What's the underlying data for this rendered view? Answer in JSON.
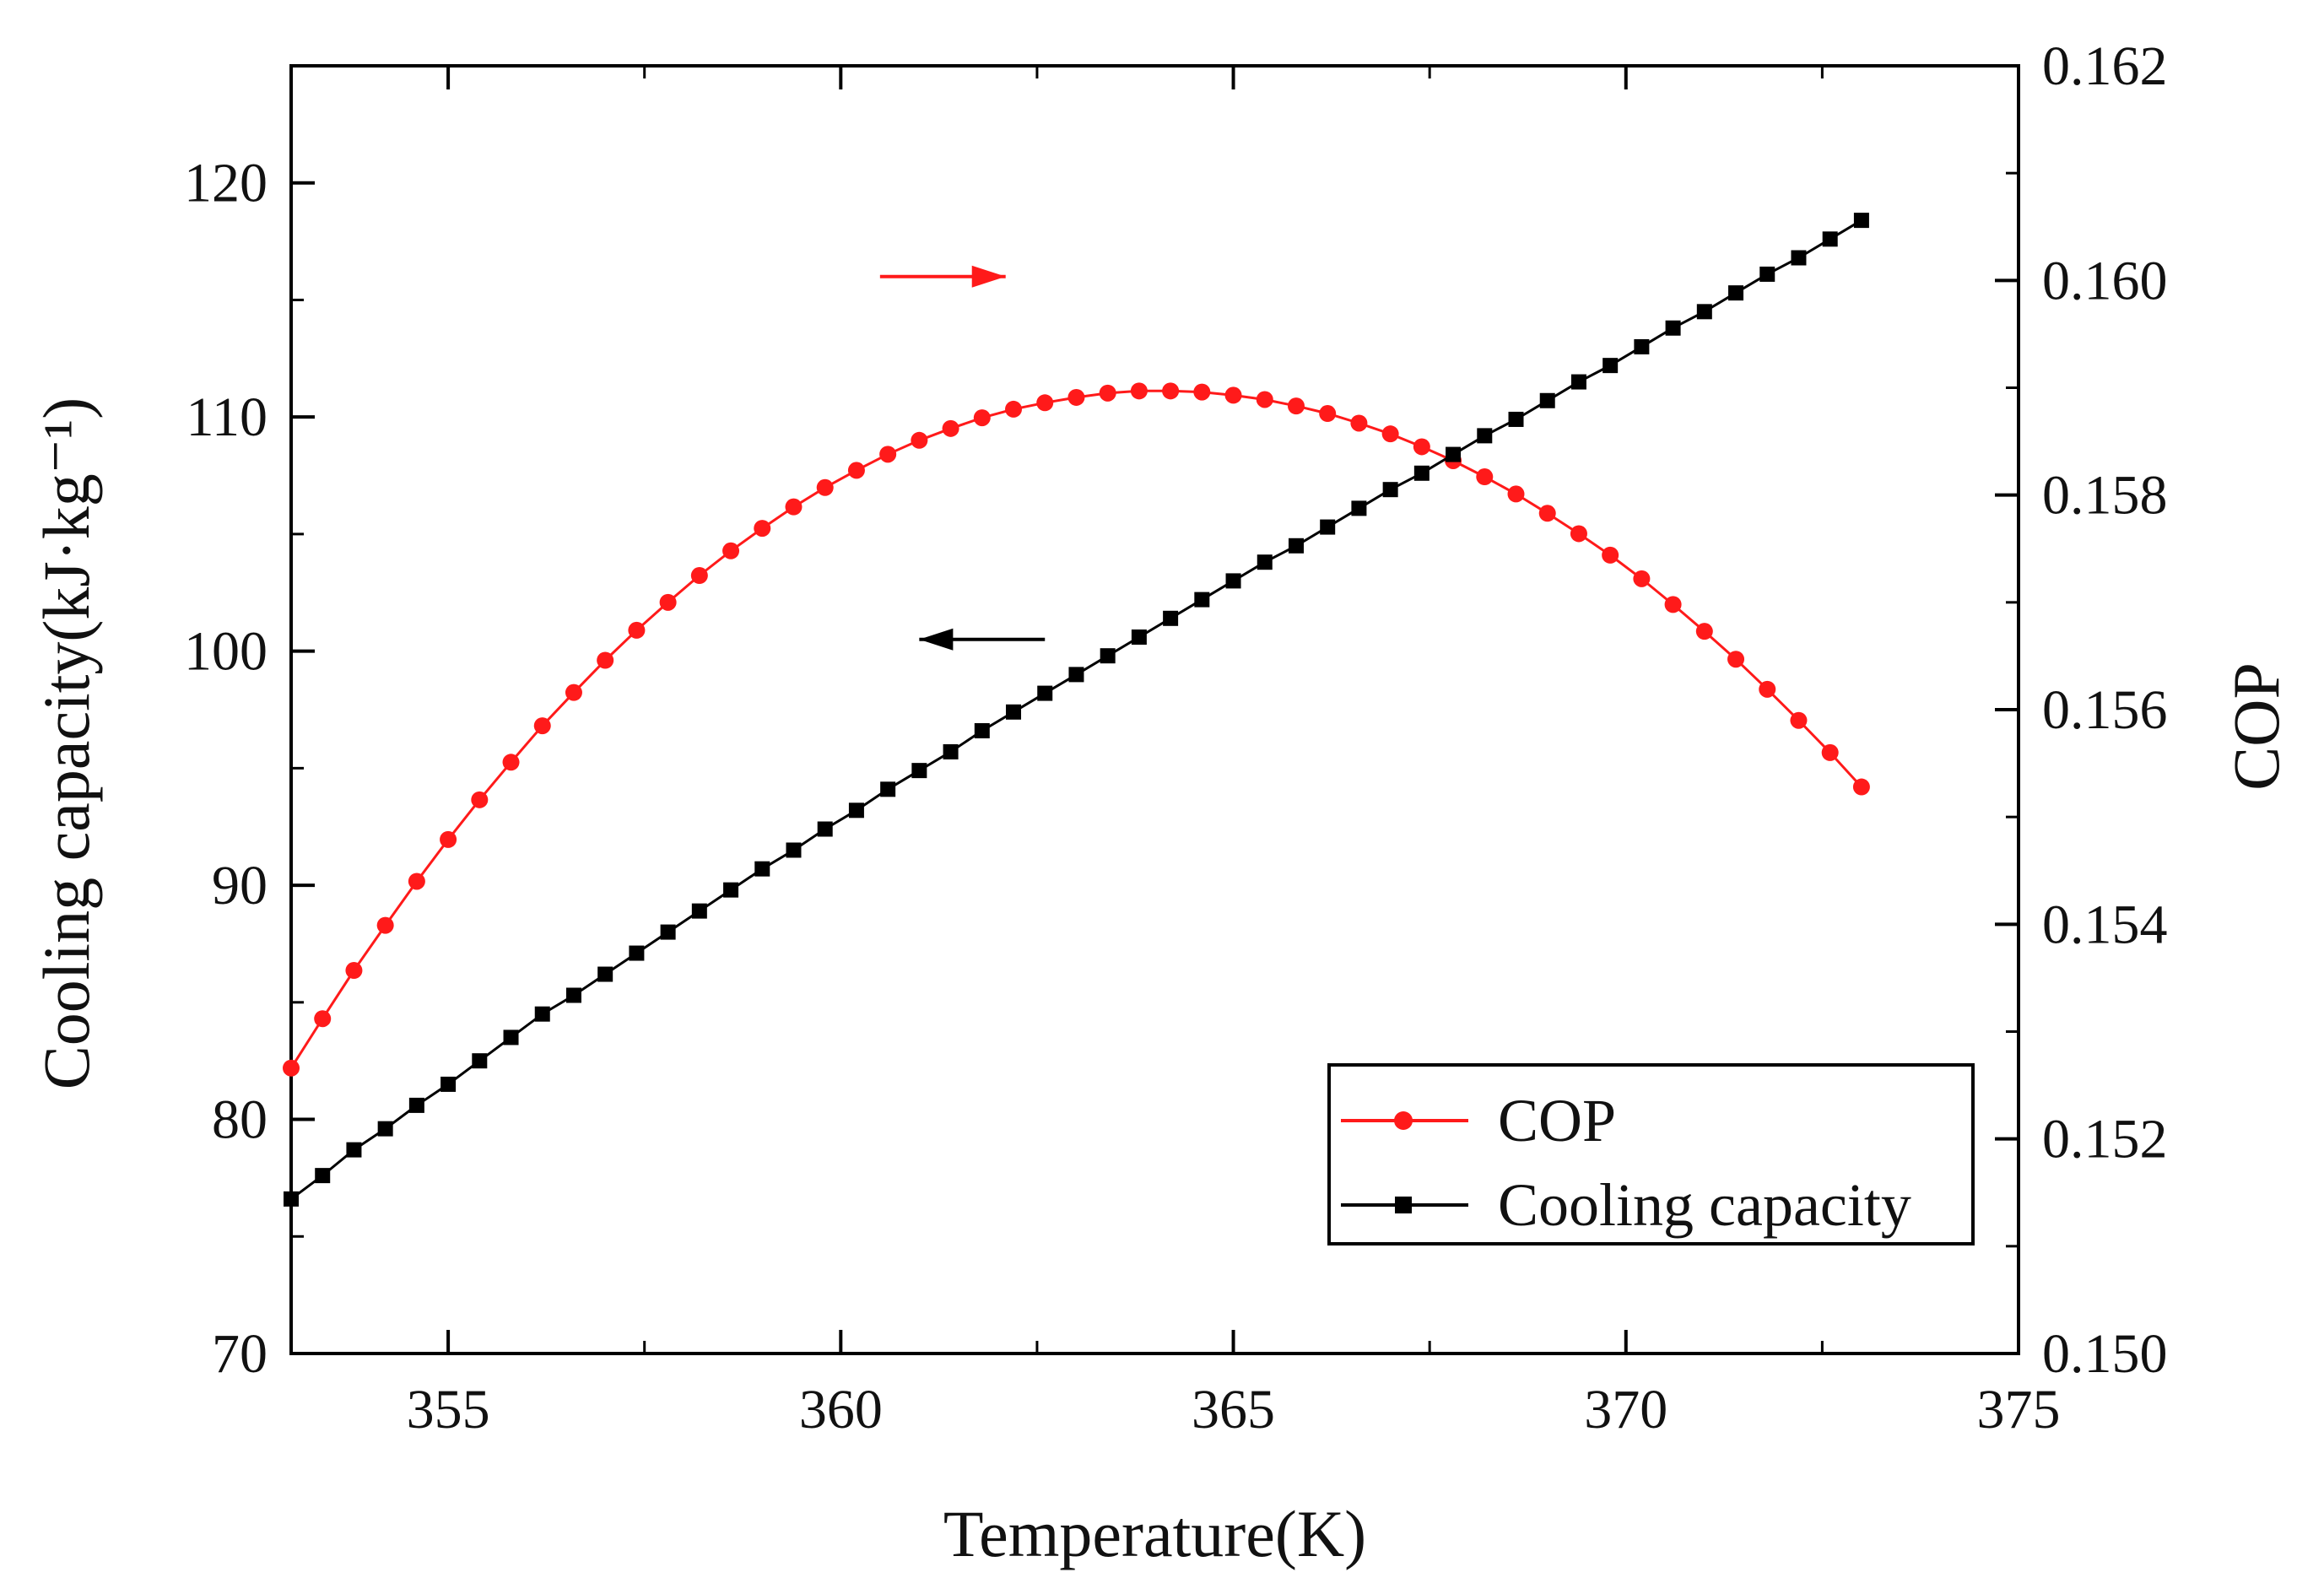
{
  "chart_data": {
    "type": "line",
    "x_title": "Temperature(K)",
    "y_left_title": "Cooling capacity(kJ·kg⁻¹)",
    "y_right_title": "COP",
    "xlim": [
      353,
      375
    ],
    "x_ticks": [
      355,
      360,
      365,
      370,
      375
    ],
    "y_left_lim": [
      70,
      125
    ],
    "y_left_ticks": [
      70,
      80,
      90,
      100,
      110,
      120
    ],
    "y_right_lim": [
      0.15,
      0.162
    ],
    "y_right_ticks": [
      "0.150",
      "0.152",
      "0.154",
      "0.156",
      "0.158",
      "0.160",
      "0.162"
    ],
    "grid": false,
    "legend_position": "bottom-right",
    "series": [
      {
        "name": "COP",
        "axis": "right",
        "color": "#ff1a1a",
        "marker": "circle",
        "x": [
          353.0,
          353.4,
          353.8,
          354.2,
          354.6,
          355.0,
          355.4,
          355.8,
          356.2,
          356.6,
          357.0,
          357.4,
          357.8,
          358.2,
          358.6,
          359.0,
          359.4,
          359.8,
          360.2,
          360.6,
          361.0,
          361.4,
          361.8,
          362.2,
          362.6,
          363.0,
          363.4,
          363.8,
          364.2,
          364.6,
          365.0,
          365.4,
          365.8,
          366.2,
          366.6,
          367.0,
          367.4,
          367.8,
          368.2,
          368.6,
          369.0,
          369.4,
          369.8,
          370.2,
          370.6,
          371.0,
          371.4,
          371.8,
          372.2,
          372.6,
          373.0
        ],
        "y": [
          0.15266,
          0.15312,
          0.15357,
          0.15399,
          0.1544,
          0.15479,
          0.15516,
          0.15551,
          0.15585,
          0.15616,
          0.15646,
          0.15674,
          0.157,
          0.15725,
          0.15748,
          0.15769,
          0.15789,
          0.15807,
          0.15823,
          0.15838,
          0.15851,
          0.15862,
          0.15872,
          0.1588,
          0.15886,
          0.15891,
          0.15895,
          0.15897,
          0.15897,
          0.15896,
          0.15893,
          0.15889,
          0.15883,
          0.15876,
          0.15867,
          0.15857,
          0.15845,
          0.15832,
          0.15817,
          0.15801,
          0.15783,
          0.15764,
          0.15744,
          0.15722,
          0.15698,
          0.15673,
          0.15647,
          0.15619,
          0.1559,
          0.1556,
          0.15528
        ]
      },
      {
        "name": "Cooling capacity",
        "axis": "left",
        "color": "#000000",
        "marker": "square",
        "x": [
          353.0,
          353.4,
          353.8,
          354.2,
          354.6,
          355.0,
          355.4,
          355.8,
          356.2,
          356.6,
          357.0,
          357.4,
          357.8,
          358.2,
          358.6,
          359.0,
          359.4,
          359.8,
          360.2,
          360.6,
          361.0,
          361.4,
          361.8,
          362.2,
          362.6,
          363.0,
          363.4,
          363.8,
          364.2,
          364.6,
          365.0,
          365.4,
          365.8,
          366.2,
          366.6,
          367.0,
          367.4,
          367.8,
          368.2,
          368.6,
          369.0,
          369.4,
          369.8,
          370.2,
          370.6,
          371.0,
          371.4,
          371.8,
          372.2,
          372.6,
          373.0
        ],
        "y": [
          76.6,
          77.6,
          78.7,
          79.6,
          80.6,
          81.5,
          82.5,
          83.5,
          84.5,
          85.3,
          86.2,
          87.1,
          88.0,
          88.9,
          89.8,
          90.7,
          91.5,
          92.4,
          93.2,
          94.1,
          94.9,
          95.7,
          96.6,
          97.4,
          98.2,
          99.0,
          99.8,
          100.6,
          101.4,
          102.2,
          103.0,
          103.8,
          104.5,
          105.3,
          106.1,
          106.9,
          107.6,
          108.4,
          109.2,
          109.9,
          110.7,
          111.5,
          112.2,
          113.0,
          113.8,
          114.5,
          115.3,
          116.1,
          116.8,
          117.6,
          118.4
        ]
      }
    ],
    "annotations": [
      {
        "kind": "arrow",
        "direction": "right",
        "points_to": "COP axis",
        "x_from": 360.5,
        "x_to": 362.1,
        "y_left": 116
      },
      {
        "kind": "arrow",
        "direction": "left",
        "points_to": "Cooling capacity axis",
        "x_from": 362.6,
        "x_to": 361.0,
        "y_left": 100.5
      }
    ]
  }
}
